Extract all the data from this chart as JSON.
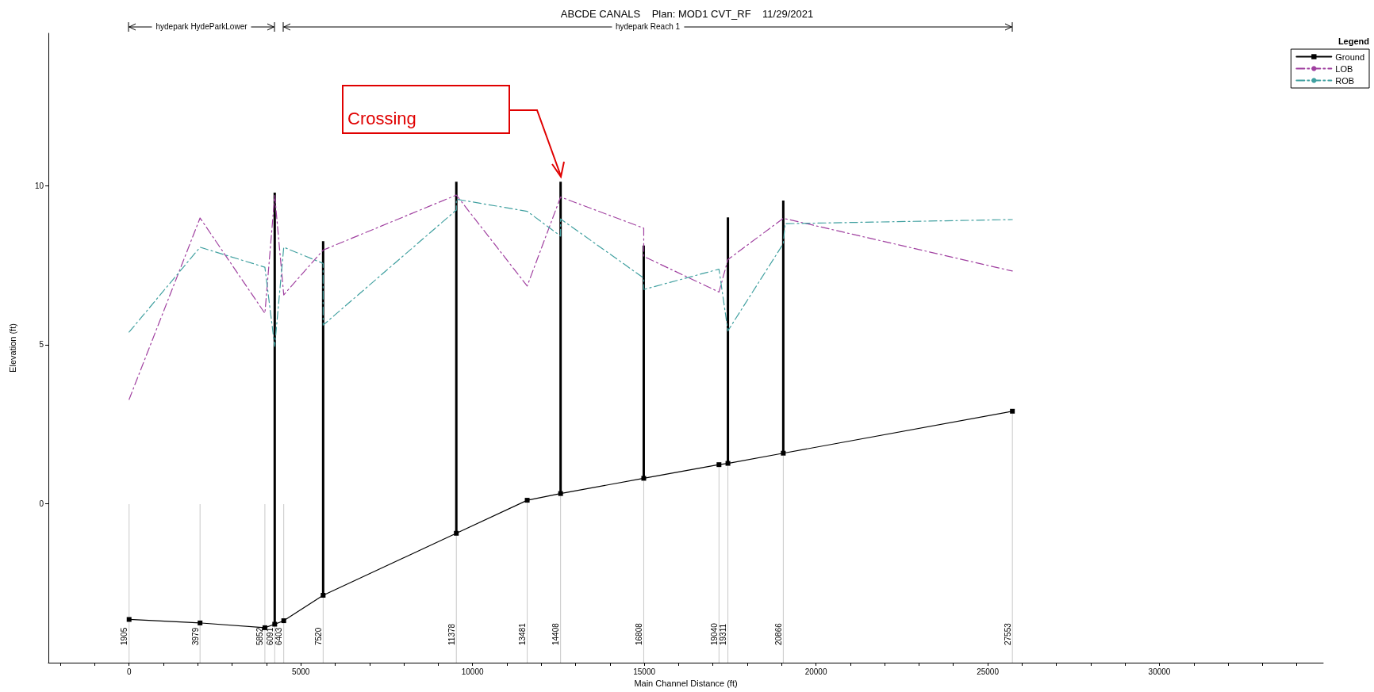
{
  "chart_data": {
    "type": "line",
    "title": "ABCDE CANALS    Plan: MOD1 CVT_RF    11/29/2021",
    "xlabel": "Main Channel Distance (ft)",
    "ylabel": "Elevation (ft)",
    "legend_title": "Legend",
    "legend": "top right",
    "annotations": [
      "hydepark HydeParkLower",
      "hydepark Reach 1",
      "Crossing",
      "1905",
      "3979",
      "5852",
      "6091",
      "6403",
      "7520",
      "11378",
      "13481",
      "14408",
      "16808",
      "19040",
      "19311",
      "20866",
      "27553"
    ],
    "xlim": [
      -2350,
      34770
    ],
    "ylim": [
      -5,
      14.8
    ],
    "xticks": [
      {
        "value": -2000,
        "label": null
      },
      {
        "value": -1000,
        "label": null
      },
      0,
      {
        "value": 1000,
        "label": null
      },
      {
        "value": 2000,
        "label": null
      },
      {
        "value": 3000,
        "label": null
      },
      {
        "value": 4000,
        "label": null
      },
      5000,
      {
        "value": 6000,
        "label": null
      },
      {
        "value": 7000,
        "label": null
      },
      {
        "value": 8000,
        "label": null
      },
      {
        "value": 9000,
        "label": null
      },
      10000,
      {
        "value": 11000,
        "label": null
      },
      {
        "value": 12000,
        "label": null
      },
      {
        "value": 13000,
        "label": null
      },
      {
        "value": 14000,
        "label": null
      },
      15000,
      {
        "value": 16000,
        "label": null
      },
      {
        "value": 17000,
        "label": null
      },
      {
        "value": 18000,
        "label": null
      },
      {
        "value": 19000,
        "label": null
      },
      20000,
      {
        "value": 21000,
        "label": null
      },
      {
        "value": 22000,
        "label": null
      },
      {
        "value": 23000,
        "label": null
      },
      {
        "value": 24000,
        "label": null
      },
      25000,
      {
        "value": 26000,
        "label": null
      },
      {
        "value": 27000,
        "label": null
      },
      {
        "value": 28000,
        "label": null
      },
      {
        "value": 29000,
        "label": null
      },
      30000,
      {
        "value": 31000,
        "label": null
      },
      {
        "value": 32000,
        "label": null
      },
      {
        "value": 33000,
        "label": null
      },
      {
        "value": 34000,
        "label": null
      }
    ],
    "yticks": [
      0,
      5,
      10
    ],
    "ref_lines": [
      {
        "axis": "x",
        "value": 0,
        "color": "#c8c8c8"
      },
      {
        "axis": "x",
        "value": 2066,
        "color": "#c8c8c8"
      },
      {
        "axis": "x",
        "value": 3954,
        "color": "#c8c8c8"
      },
      {
        "axis": "x",
        "value": 4240,
        "color": "#c8c8c8"
      },
      {
        "axis": "x",
        "value": 4503,
        "color": "#c8c8c8"
      },
      {
        "axis": "x",
        "value": 5650,
        "color": "#c8c8c8"
      },
      {
        "axis": "x",
        "value": 9528,
        "color": "#c8c8c8"
      },
      {
        "axis": "x",
        "value": 11592,
        "color": "#c8c8c8"
      },
      {
        "axis": "x",
        "value": 12564,
        "color": "#c8c8c8"
      },
      {
        "axis": "x",
        "value": 14985,
        "color": "#c8c8c8"
      },
      {
        "axis": "x",
        "value": 17176,
        "color": "#c8c8c8"
      },
      {
        "axis": "x",
        "value": 17436,
        "color": "#c8c8c8"
      },
      {
        "axis": "x",
        "value": 19048,
        "color": "#c8c8c8"
      },
      {
        "axis": "x",
        "value": 25719,
        "color": "#c8c8c8"
      }
    ],
    "series": [
      {
        "name": "Ground",
        "color": "#000000",
        "marker": "square",
        "line_style": "solid",
        "x": [
          0,
          2066,
          3954,
          4240,
          4503,
          5650,
          9528,
          11592,
          12564,
          14985,
          17176,
          17436,
          19048,
          25719
        ],
        "values": [
          -3.64,
          -3.75,
          -3.9,
          -3.79,
          -3.68,
          -2.88,
          -0.93,
          0.11,
          0.32,
          0.8,
          1.23,
          1.27,
          1.59,
          2.91
        ]
      },
      {
        "name": "LOB",
        "color": "#a040a0",
        "marker": "none",
        "line_style": "dashed",
        "x": [
          0,
          2066,
          3954,
          4240,
          4503,
          5650,
          9528,
          11592,
          12564,
          14985,
          14985,
          17176,
          17436,
          19048,
          25719
        ],
        "values": [
          3.28,
          8.99,
          5.99,
          9.7,
          6.57,
          7.98,
          9.71,
          6.85,
          9.65,
          8.67,
          7.78,
          6.66,
          7.68,
          8.98,
          7.32
        ]
      },
      {
        "name": "ROB",
        "color": "#40a0a0",
        "marker": "none",
        "line_style": "dashed",
        "x": [
          0,
          2066,
          3954,
          4240,
          4503,
          5650,
          5650,
          9528,
          9528,
          11592,
          12564,
          12564,
          14985,
          14985,
          17176,
          17436,
          19048,
          19100,
          25719
        ],
        "values": [
          5.4,
          8.07,
          7.44,
          4.95,
          8.07,
          7.56,
          5.62,
          9.24,
          9.58,
          9.2,
          8.42,
          8.96,
          7.1,
          6.74,
          7.38,
          5.44,
          8.18,
          8.81,
          8.94
        ]
      },
      {
        "type": "bar",
        "color": "#000000",
        "x": [
          4240,
          5650,
          9528,
          12564,
          14985,
          17436,
          19048
        ],
        "base": [
          -3.79,
          -2.88,
          -0.93,
          0.32,
          0.8,
          1.27,
          1.59
        ],
        "values": [
          13.58,
          11.14,
          11.06,
          9.81,
          7.32,
          7.74,
          7.95
        ]
      }
    ]
  }
}
